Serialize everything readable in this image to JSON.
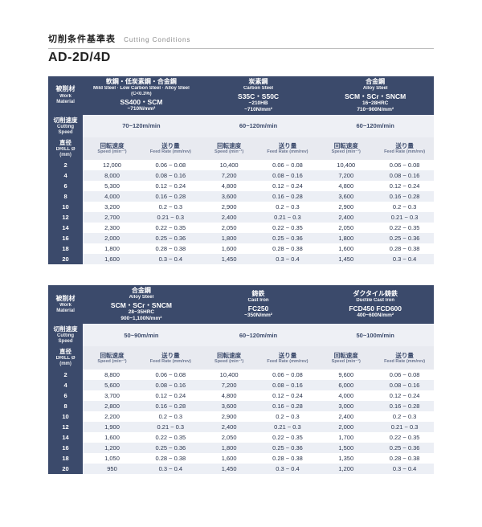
{
  "header": {
    "pretitle_jp": "切削条件基準表",
    "pretitle_en": "Cutting Conditions",
    "product": "AD-2D/4D"
  },
  "labels": {
    "material_jp": "被削材",
    "material_en": "Work Material",
    "cutspeed_jp": "切削速度",
    "cutspeed_en": "Cutting Speed",
    "dia_jp": "直径",
    "dia_en": "DRILL Ø (mm)",
    "rot_jp": "回転速度",
    "rot_en": "Speed (min⁻¹)",
    "feed_jp": "送り量",
    "feed_en": "Feed Rate (mm/rev)"
  },
  "colors": {
    "hdr": "#3b4a6b",
    "hdr2": "#e8eaf0",
    "speedbg": "#eef0f5",
    "rowA": "#ffffff",
    "rowB": "#eceff5"
  },
  "tables": [
    {
      "materials": [
        {
          "jp": "軟鋼・低炭素鋼・合金鋼",
          "en": "Mild Steel · Low Carbon Steel · Alloy Steel",
          "cond": "(C<0.3%)",
          "code": "SS400・SCM",
          "mpa": "~710N/mm²",
          "speed": "70~120m/min"
        },
        {
          "jp": "炭素鋼",
          "en": "Carbon Steel",
          "cond": "",
          "code": "S35C・S50C",
          "hrc2": "~210HB",
          "mpa": "~710N/mm²",
          "speed": "60~120m/min"
        },
        {
          "jp": "合金鋼",
          "en": "Alloy Steel",
          "cond": "",
          "code": "SCM・SCr・SNCM",
          "hrc2": "16~28HRC",
          "mpa": "710~900N/mm²",
          "speed": "60~120m/min"
        }
      ],
      "rows": [
        {
          "d": "2",
          "v": [
            [
              "12,000",
              "0.06 ~ 0.08"
            ],
            [
              "10,400",
              "0.06 ~ 0.08"
            ],
            [
              "10,400",
              "0.06 ~ 0.08"
            ]
          ]
        },
        {
          "d": "4",
          "v": [
            [
              "8,000",
              "0.08 ~ 0.16"
            ],
            [
              "7,200",
              "0.08 ~ 0.16"
            ],
            [
              "7,200",
              "0.08 ~ 0.16"
            ]
          ]
        },
        {
          "d": "6",
          "v": [
            [
              "5,300",
              "0.12 ~ 0.24"
            ],
            [
              "4,800",
              "0.12 ~ 0.24"
            ],
            [
              "4,800",
              "0.12 ~ 0.24"
            ]
          ]
        },
        {
          "d": "8",
          "v": [
            [
              "4,000",
              "0.16 ~ 0.28"
            ],
            [
              "3,600",
              "0.16 ~ 0.28"
            ],
            [
              "3,600",
              "0.16 ~ 0.28"
            ]
          ]
        },
        {
          "d": "10",
          "v": [
            [
              "3,200",
              "0.2 ~ 0.3"
            ],
            [
              "2,900",
              "0.2 ~ 0.3"
            ],
            [
              "2,900",
              "0.2 ~ 0.3"
            ]
          ]
        },
        {
          "d": "12",
          "v": [
            [
              "2,700",
              "0.21 ~ 0.3"
            ],
            [
              "2,400",
              "0.21 ~ 0.3"
            ],
            [
              "2,400",
              "0.21 ~ 0.3"
            ]
          ]
        },
        {
          "d": "14",
          "v": [
            [
              "2,300",
              "0.22 ~ 0.35"
            ],
            [
              "2,050",
              "0.22 ~ 0.35"
            ],
            [
              "2,050",
              "0.22 ~ 0.35"
            ]
          ]
        },
        {
          "d": "16",
          "v": [
            [
              "2,000",
              "0.25 ~ 0.36"
            ],
            [
              "1,800",
              "0.25 ~ 0.36"
            ],
            [
              "1,800",
              "0.25 ~ 0.36"
            ]
          ]
        },
        {
          "d": "18",
          "v": [
            [
              "1,800",
              "0.28 ~ 0.38"
            ],
            [
              "1,600",
              "0.28 ~ 0.38"
            ],
            [
              "1,600",
              "0.28 ~ 0.38"
            ]
          ]
        },
        {
          "d": "20",
          "v": [
            [
              "1,600",
              "0.3 ~ 0.4"
            ],
            [
              "1,450",
              "0.3 ~ 0.4"
            ],
            [
              "1,450",
              "0.3 ~ 0.4"
            ]
          ]
        }
      ]
    },
    {
      "materials": [
        {
          "jp": "合金鋼",
          "en": "Alloy Steel",
          "cond": "",
          "code": "SCM・SCr・SNCM",
          "hrc2": "28~35HRC",
          "mpa": "900~1,100N/mm²",
          "speed": "50~90m/min"
        },
        {
          "jp": "鋳鉄",
          "en": "Cast Iron",
          "cond": "",
          "code": "FC250",
          "mpa": "~350N/mm²",
          "speed": "60~120m/min"
        },
        {
          "jp": "ダクタイル鋳鉄",
          "en": "Ductile Cast Iron",
          "cond": "",
          "code": "FCD450 FCD600",
          "mpa": "400~600N/mm²",
          "speed": "50~100m/min"
        }
      ],
      "rows": [
        {
          "d": "2",
          "v": [
            [
              "8,800",
              "0.06 ~ 0.08"
            ],
            [
              "10,400",
              "0.06 ~ 0.08"
            ],
            [
              "9,600",
              "0.06 ~ 0.08"
            ]
          ]
        },
        {
          "d": "4",
          "v": [
            [
              "5,600",
              "0.08 ~ 0.16"
            ],
            [
              "7,200",
              "0.08 ~ 0.16"
            ],
            [
              "6,000",
              "0.08 ~ 0.16"
            ]
          ]
        },
        {
          "d": "6",
          "v": [
            [
              "3,700",
              "0.12 ~ 0.24"
            ],
            [
              "4,800",
              "0.12 ~ 0.24"
            ],
            [
              "4,000",
              "0.12 ~ 0.24"
            ]
          ]
        },
        {
          "d": "8",
          "v": [
            [
              "2,800",
              "0.16 ~ 0.28"
            ],
            [
              "3,600",
              "0.16 ~ 0.28"
            ],
            [
              "3,000",
              "0.16 ~ 0.28"
            ]
          ]
        },
        {
          "d": "10",
          "v": [
            [
              "2,200",
              "0.2 ~ 0.3"
            ],
            [
              "2,900",
              "0.2 ~ 0.3"
            ],
            [
              "2,400",
              "0.2 ~ 0.3"
            ]
          ]
        },
        {
          "d": "12",
          "v": [
            [
              "1,900",
              "0.21 ~ 0.3"
            ],
            [
              "2,400",
              "0.21 ~ 0.3"
            ],
            [
              "2,000",
              "0.21 ~ 0.3"
            ]
          ]
        },
        {
          "d": "14",
          "v": [
            [
              "1,600",
              "0.22 ~ 0.35"
            ],
            [
              "2,050",
              "0.22 ~ 0.35"
            ],
            [
              "1,700",
              "0.22 ~ 0.35"
            ]
          ]
        },
        {
          "d": "16",
          "v": [
            [
              "1,200",
              "0.25 ~ 0.36"
            ],
            [
              "1,800",
              "0.25 ~ 0.36"
            ],
            [
              "1,500",
              "0.25 ~ 0.36"
            ]
          ]
        },
        {
          "d": "18",
          "v": [
            [
              "1,050",
              "0.28 ~ 0.38"
            ],
            [
              "1,600",
              "0.28 ~ 0.38"
            ],
            [
              "1,350",
              "0.28 ~ 0.38"
            ]
          ]
        },
        {
          "d": "20",
          "v": [
            [
              "950",
              "0.3 ~ 0.4"
            ],
            [
              "1,450",
              "0.3 ~ 0.4"
            ],
            [
              "1,200",
              "0.3 ~ 0.4"
            ]
          ]
        }
      ]
    }
  ]
}
